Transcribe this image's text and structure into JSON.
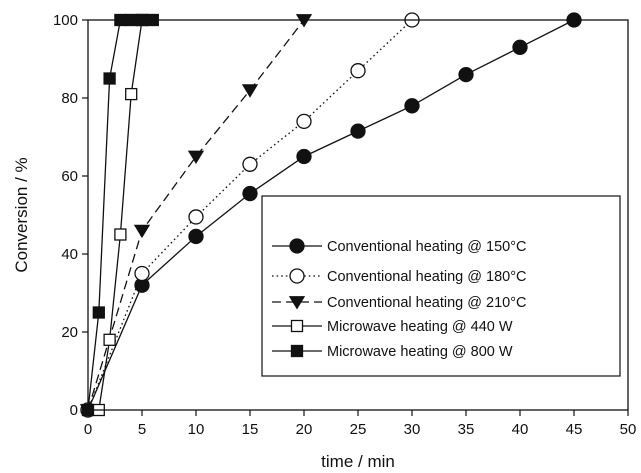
{
  "chart_data": {
    "type": "line",
    "title": "",
    "xlabel": "time / min",
    "ylabel": "Conversion / %",
    "xlim": [
      0,
      50
    ],
    "ylim": [
      0,
      100
    ],
    "xticks": [
      0,
      5,
      10,
      15,
      20,
      25,
      30,
      35,
      40,
      45,
      50
    ],
    "yticks": [
      0,
      20,
      40,
      60,
      80,
      100
    ],
    "grid": false,
    "legend_position": "center-right",
    "series": [
      {
        "name": "Conventional heating @ 150°C",
        "marker": "filled-circle",
        "line_style": "solid",
        "x": [
          0,
          5,
          10,
          15,
          20,
          25,
          30,
          35,
          40,
          45
        ],
        "y": [
          0,
          32,
          44.5,
          55.5,
          65,
          71.5,
          78,
          86,
          93,
          100
        ]
      },
      {
        "name": "Conventional heating @ 180°C",
        "marker": "open-circle",
        "line_style": "dotted",
        "x": [
          0,
          5,
          10,
          15,
          20,
          25,
          30
        ],
        "y": [
          0,
          35,
          49.5,
          63,
          74,
          87,
          100
        ]
      },
      {
        "name": "Conventional heating @ 210°C",
        "marker": "filled-triangle-down",
        "line_style": "dashed",
        "x": [
          0,
          5,
          10,
          15,
          20
        ],
        "y": [
          0,
          46,
          65,
          82,
          100
        ]
      },
      {
        "name": "Microwave heating @ 440 W",
        "marker": "open-square",
        "line_style": "solid",
        "x": [
          1,
          2,
          3,
          4,
          5
        ],
        "y": [
          0,
          18,
          45,
          81,
          100
        ]
      },
      {
        "name": "Microwave heating @ 800 W",
        "marker": "filled-square",
        "line_style": "solid",
        "x": [
          0,
          1,
          2,
          3,
          4,
          5,
          6
        ],
        "y": [
          0,
          25,
          85,
          100,
          100,
          100,
          100
        ]
      }
    ]
  }
}
